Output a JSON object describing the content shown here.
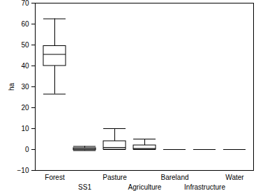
{
  "chart_data": {
    "type": "box",
    "categories": [
      "Forest",
      "SS1",
      "Pasture",
      "Agriculture",
      "Bareland",
      "Infrastructure",
      "Water"
    ],
    "min": [
      26.5,
      -0.5,
      0,
      0,
      0,
      0,
      0
    ],
    "q1": [
      40,
      -0.3,
      0,
      0,
      0,
      0,
      0
    ],
    "median": [
      45.5,
      0.3,
      1,
      0.5,
      0,
      0,
      0
    ],
    "q3": [
      49.5,
      0.7,
      4,
      2,
      0,
      0,
      0
    ],
    "max": [
      62.5,
      1.5,
      10,
      5,
      0,
      0,
      0
    ],
    "y_label": "ha",
    "color": "#000000",
    "ylim": [
      -10,
      70
    ],
    "yticks": [
      -10,
      0,
      10,
      20,
      30,
      40,
      50,
      60,
      70
    ]
  }
}
